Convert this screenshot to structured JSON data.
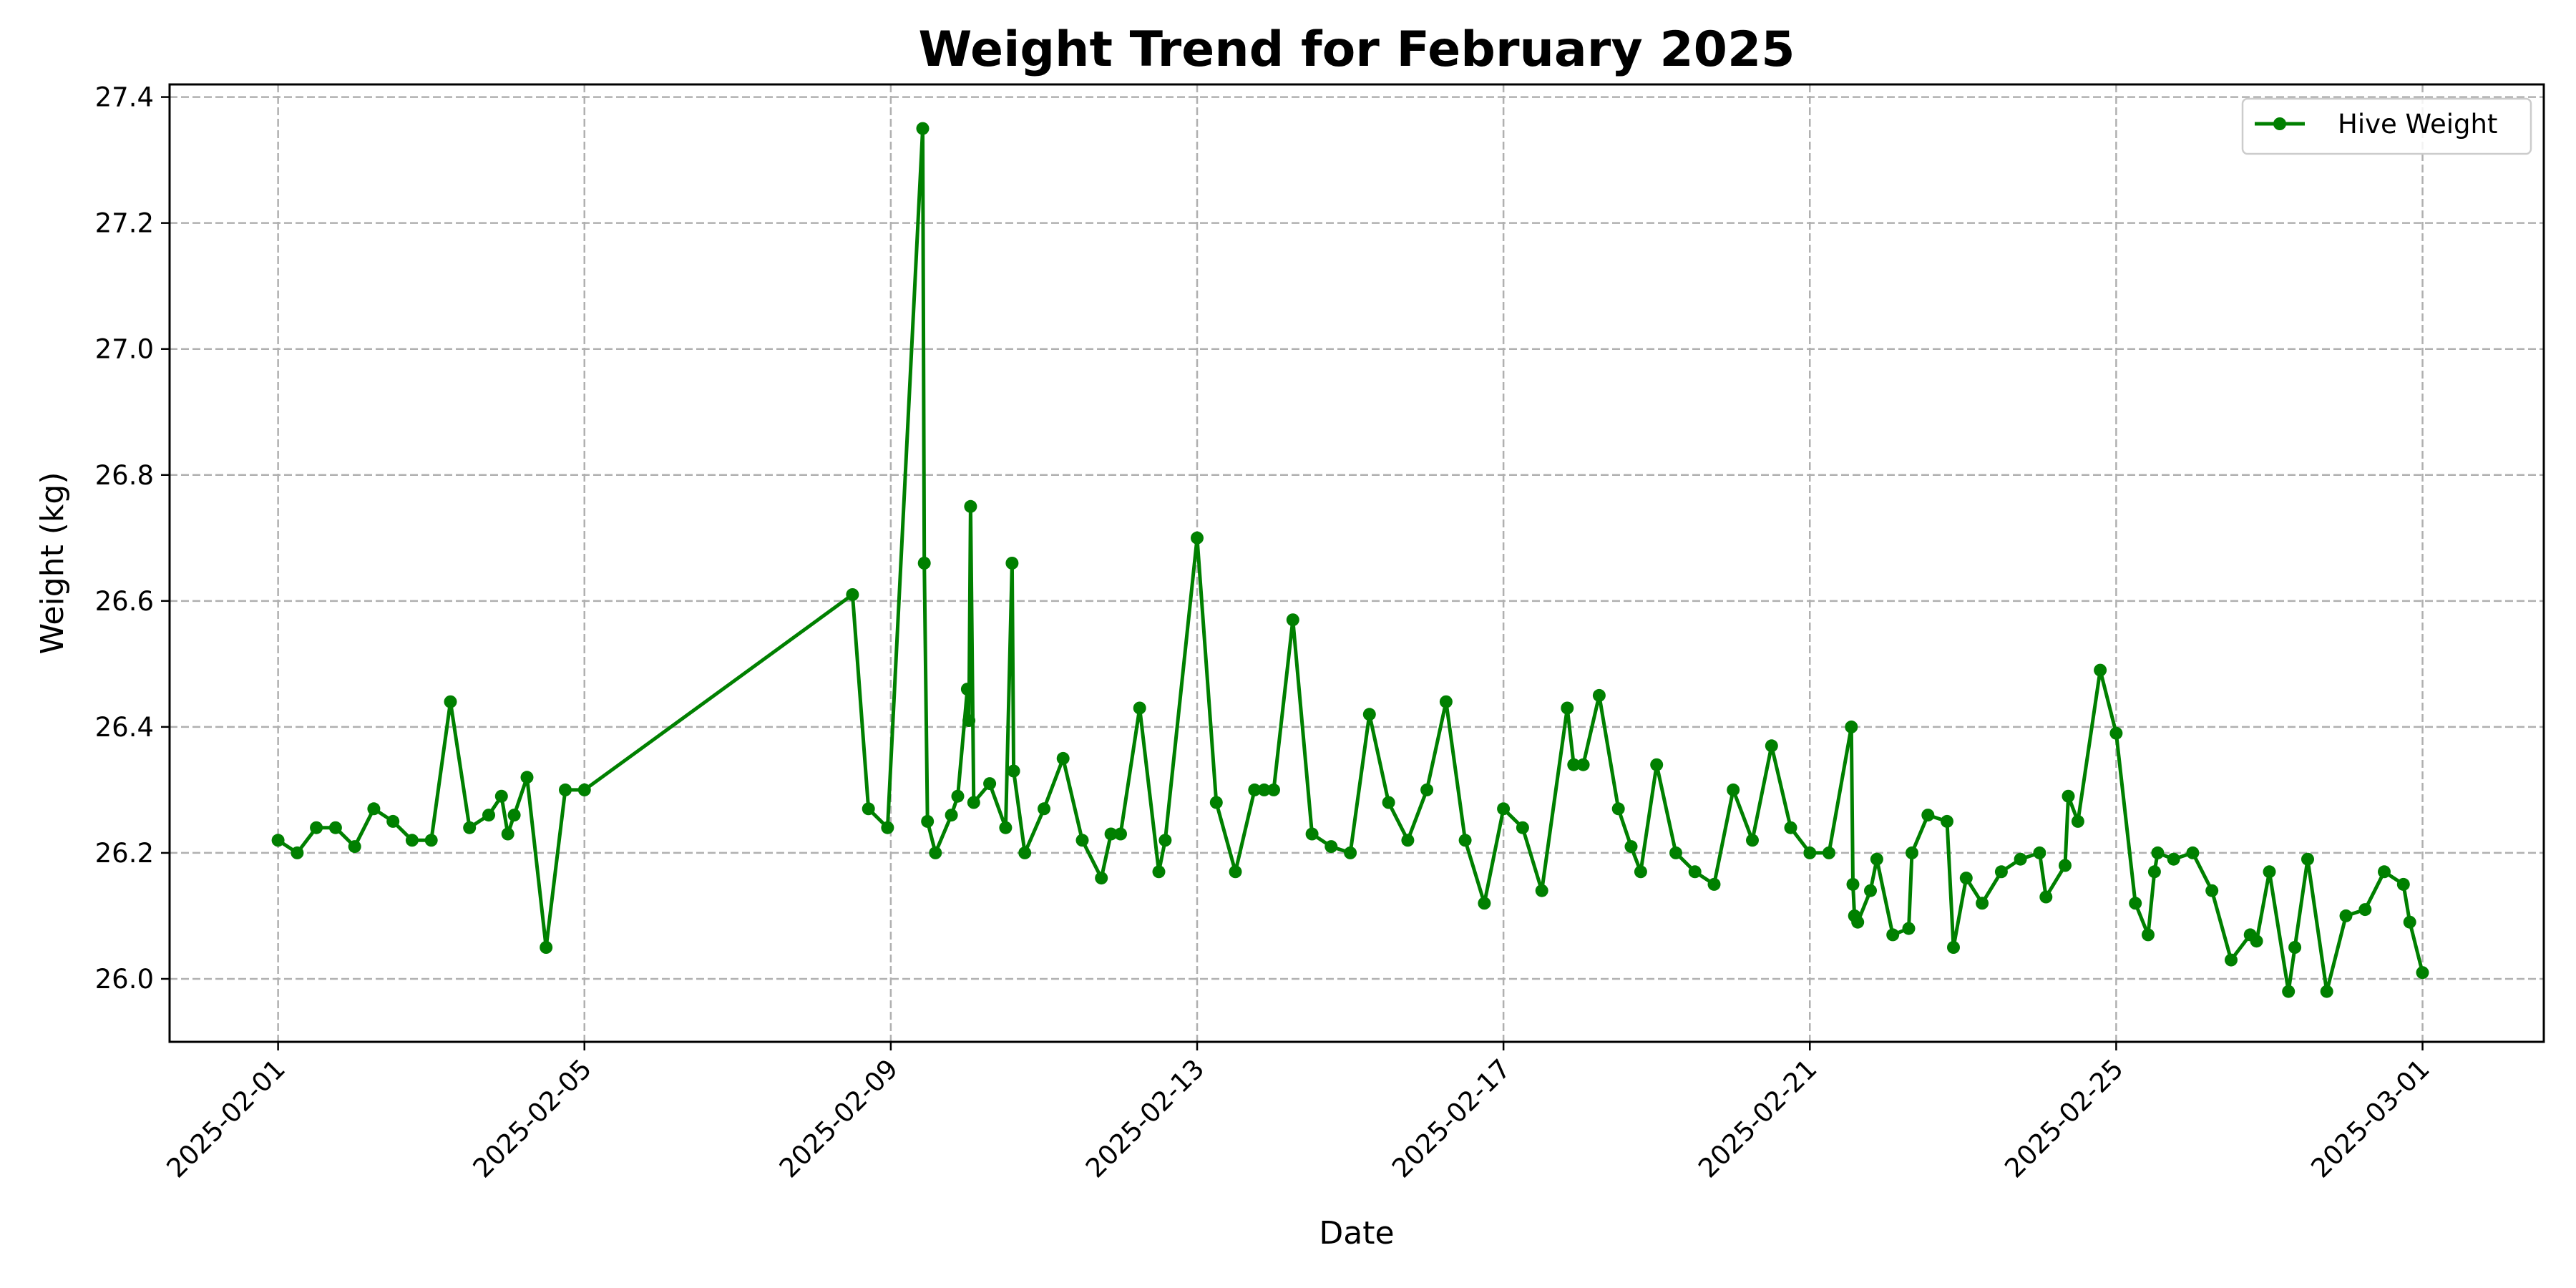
{
  "chart_data": {
    "type": "line",
    "title": "Weight Trend for February 2025",
    "xlabel": "Date",
    "ylabel": "Weight (kg)",
    "xlim": [
      "2025-01-30T14:00",
      "2025-03-02T14:00"
    ],
    "ylim": [
      25.9,
      27.42
    ],
    "x_ticks": [
      "2025-02-01",
      "2025-02-05",
      "2025-02-09",
      "2025-02-13",
      "2025-02-17",
      "2025-02-21",
      "2025-02-25",
      "2025-03-01"
    ],
    "y_ticks": [
      26.0,
      26.2,
      26.4,
      26.6,
      26.8,
      27.0,
      27.2,
      27.4
    ],
    "grid": true,
    "legend_position": "top-right",
    "colors": {
      "series": "#008000",
      "grid": "#b0b0b0"
    },
    "series": [
      {
        "name": "Hive Weight",
        "marker": "circle",
        "x": [
          "2025-02-01T00:00",
          "2025-02-01T06:00",
          "2025-02-01T12:00",
          "2025-02-01T18:00",
          "2025-02-02T00:00",
          "2025-02-02T06:00",
          "2025-02-02T12:00",
          "2025-02-02T18:00",
          "2025-02-03T00:00",
          "2025-02-03T06:00",
          "2025-02-03T12:00",
          "2025-02-03T18:00",
          "2025-02-03T22:00",
          "2025-02-04T00:00",
          "2025-02-04T02:00",
          "2025-02-04T06:00",
          "2025-02-04T12:00",
          "2025-02-04T18:00",
          "2025-02-05T00:00",
          "2025-02-08T12:00",
          "2025-02-08T17:00",
          "2025-02-08T23:00",
          "2025-02-09T10:00",
          "2025-02-09T10:30",
          "2025-02-09T11:30",
          "2025-02-09T14:00",
          "2025-02-09T19:00",
          "2025-02-09T21:00",
          "2025-02-10T00:00",
          "2025-02-10T00:30",
          "2025-02-10T01:00",
          "2025-02-10T02:00",
          "2025-02-10T07:00",
          "2025-02-10T12:00",
          "2025-02-10T14:00",
          "2025-02-10T14:30",
          "2025-02-10T18:00",
          "2025-02-11T00:00",
          "2025-02-11T06:00",
          "2025-02-11T12:00",
          "2025-02-11T18:00",
          "2025-02-11T21:00",
          "2025-02-12T00:00",
          "2025-02-12T06:00",
          "2025-02-12T12:00",
          "2025-02-12T14:00",
          "2025-02-13T00:00",
          "2025-02-13T06:00",
          "2025-02-13T12:00",
          "2025-02-13T18:00",
          "2025-02-13T21:00",
          "2025-02-14T00:00",
          "2025-02-14T06:00",
          "2025-02-14T12:00",
          "2025-02-14T18:00",
          "2025-02-15T00:00",
          "2025-02-15T06:00",
          "2025-02-15T12:00",
          "2025-02-15T18:00",
          "2025-02-16T00:00",
          "2025-02-16T06:00",
          "2025-02-16T12:00",
          "2025-02-16T18:00",
          "2025-02-17T00:00",
          "2025-02-17T06:00",
          "2025-02-17T12:00",
          "2025-02-17T20:00",
          "2025-02-17T22:00",
          "2025-02-18T01:00",
          "2025-02-18T06:00",
          "2025-02-18T12:00",
          "2025-02-18T16:00",
          "2025-02-18T19:00",
          "2025-02-19T00:00",
          "2025-02-19T06:00",
          "2025-02-19T12:00",
          "2025-02-19T18:00",
          "2025-02-20T00:00",
          "2025-02-20T06:00",
          "2025-02-20T12:00",
          "2025-02-20T18:00",
          "2025-02-21T00:00",
          "2025-02-21T06:00",
          "2025-02-21T13:00",
          "2025-02-21T13:30",
          "2025-02-21T14:00",
          "2025-02-21T15:00",
          "2025-02-21T19:00",
          "2025-02-21T21:00",
          "2025-02-22T02:00",
          "2025-02-22T07:00",
          "2025-02-22T08:00",
          "2025-02-22T13:00",
          "2025-02-22T19:00",
          "2025-02-22T21:00",
          "2025-02-23T01:00",
          "2025-02-23T06:00",
          "2025-02-23T12:00",
          "2025-02-23T18:00",
          "2025-02-24T00:00",
          "2025-02-24T02:00",
          "2025-02-24T08:00",
          "2025-02-24T09:00",
          "2025-02-24T12:00",
          "2025-02-24T19:00",
          "2025-02-25T00:00",
          "2025-02-25T06:00",
          "2025-02-25T10:00",
          "2025-02-25T12:00",
          "2025-02-25T13:00",
          "2025-02-25T18:00",
          "2025-02-26T00:00",
          "2025-02-26T06:00",
          "2025-02-26T12:00",
          "2025-02-26T18:00",
          "2025-02-26T20:00",
          "2025-02-27T00:00",
          "2025-02-27T06:00",
          "2025-02-27T08:00",
          "2025-02-27T12:00",
          "2025-02-27T18:00",
          "2025-02-28T00:00",
          "2025-02-28T06:00",
          "2025-02-28T12:00",
          "2025-02-28T18:00",
          "2025-02-28T20:00",
          "2025-03-01T00:00"
        ],
        "y": [
          26.22,
          26.2,
          26.24,
          26.24,
          26.21,
          26.27,
          26.25,
          26.22,
          26.22,
          26.44,
          26.24,
          26.26,
          26.29,
          26.23,
          26.26,
          26.32,
          26.05,
          26.3,
          26.3,
          26.61,
          26.27,
          26.24,
          27.35,
          26.66,
          26.25,
          26.2,
          26.26,
          26.29,
          26.46,
          26.41,
          26.75,
          26.28,
          26.31,
          26.24,
          26.66,
          26.33,
          26.2,
          26.27,
          26.35,
          26.22,
          26.16,
          26.23,
          26.23,
          26.43,
          26.17,
          26.22,
          26.7,
          26.28,
          26.17,
          26.3,
          26.3,
          26.3,
          26.57,
          26.23,
          26.21,
          26.2,
          26.42,
          26.28,
          26.22,
          26.3,
          26.44,
          26.22,
          26.12,
          26.27,
          26.24,
          26.14,
          26.43,
          26.34,
          26.34,
          26.45,
          26.27,
          26.21,
          26.17,
          26.34,
          26.2,
          26.17,
          26.15,
          26.3,
          26.22,
          26.37,
          26.24,
          26.2,
          26.2,
          26.4,
          26.15,
          26.1,
          26.09,
          26.14,
          26.19,
          26.07,
          26.08,
          26.2,
          26.26,
          26.25,
          26.05,
          26.16,
          26.12,
          26.17,
          26.19,
          26.2,
          26.13,
          26.18,
          26.29,
          26.25,
          26.49,
          26.39,
          26.12,
          26.07,
          26.17,
          26.2,
          26.19,
          26.2,
          26.14,
          26.03,
          26.07,
          26.06,
          26.17,
          25.98,
          26.05,
          26.19,
          25.98,
          26.1,
          26.11,
          26.17,
          26.15,
          26.09,
          26.01
        ]
      }
    ]
  }
}
